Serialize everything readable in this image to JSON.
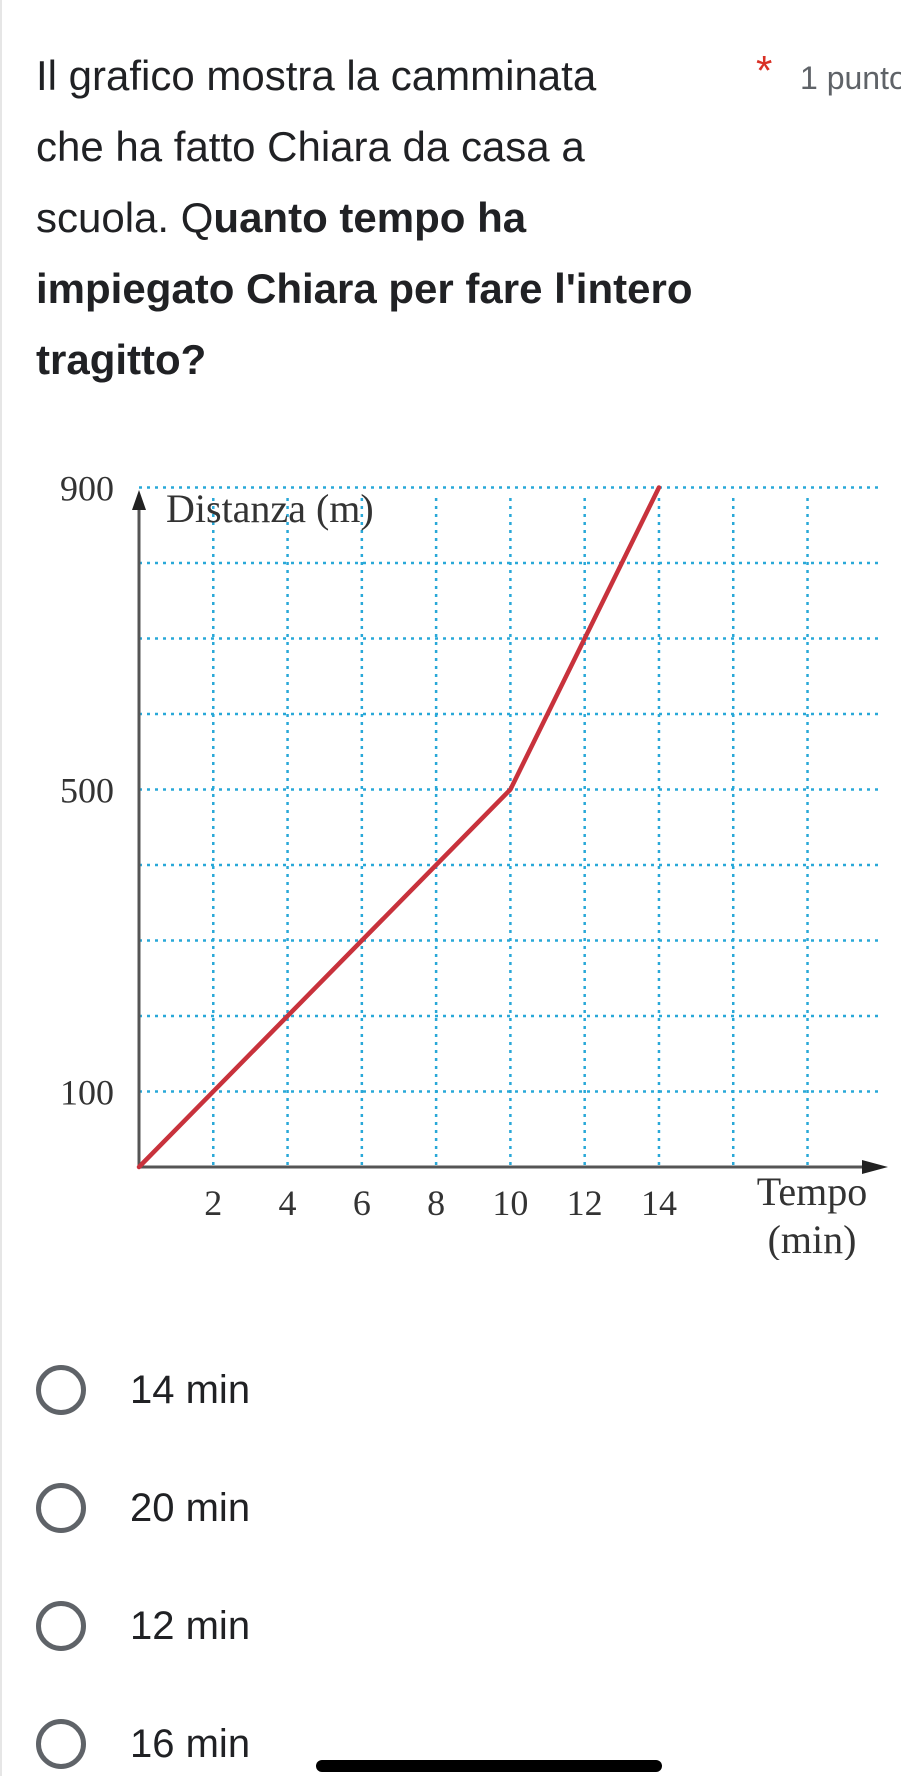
{
  "question": {
    "lines": [
      {
        "parts": [
          {
            "text": "Il grafico mostra la camminata",
            "bold": false
          }
        ]
      },
      {
        "parts": [
          {
            "text": "che ha fatto Chiara da casa a",
            "bold": false
          }
        ]
      },
      {
        "parts": [
          {
            "text": "scuola. Q",
            "bold": false
          },
          {
            "text": "uanto tempo ha",
            "bold": true
          }
        ]
      },
      {
        "parts": [
          {
            "text": "impiegato Chiara per fare l'intero",
            "bold": true
          }
        ]
      },
      {
        "parts": [
          {
            "text": "tragitto?",
            "bold": true
          }
        ]
      }
    ],
    "required_marker": "*",
    "points": "1 punto"
  },
  "chart_data": {
    "type": "line",
    "ylabel": "Distanza (m)",
    "xlabel_line1": "Tempo",
    "xlabel_line2": "(min)",
    "x_ticks": [
      "2",
      "4",
      "6",
      "8",
      "10",
      "12",
      "14"
    ],
    "y_ticks": [
      "100",
      "500",
      "900"
    ],
    "xlim": [
      0,
      20
    ],
    "ylim": [
      0,
      900
    ],
    "grid": true,
    "series": [
      {
        "x": [
          0,
          10,
          12,
          14
        ],
        "y": [
          0,
          500,
          700,
          900
        ],
        "color": "#c8323c"
      }
    ],
    "colors": {
      "grid": "#29a8d8",
      "axis": "#555555",
      "text": "#333333"
    }
  },
  "options": [
    {
      "label": "14 min"
    },
    {
      "label": "20 min"
    },
    {
      "label": "12 min"
    },
    {
      "label": "16 min"
    }
  ]
}
